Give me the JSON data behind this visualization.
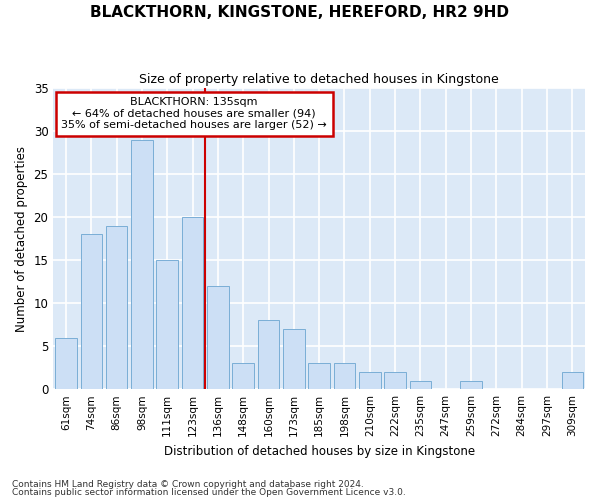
{
  "title": "BLACKTHORN, KINGSTONE, HEREFORD, HR2 9HD",
  "subtitle": "Size of property relative to detached houses in Kingstone",
  "xlabel": "Distribution of detached houses by size in Kingstone",
  "ylabel": "Number of detached properties",
  "categories": [
    "61sqm",
    "74sqm",
    "86sqm",
    "98sqm",
    "111sqm",
    "123sqm",
    "136sqm",
    "148sqm",
    "160sqm",
    "173sqm",
    "185sqm",
    "198sqm",
    "210sqm",
    "222sqm",
    "235sqm",
    "247sqm",
    "259sqm",
    "272sqm",
    "284sqm",
    "297sqm",
    "309sqm"
  ],
  "values": [
    6,
    18,
    19,
    29,
    15,
    20,
    12,
    3,
    8,
    7,
    3,
    3,
    2,
    2,
    1,
    0,
    1,
    0,
    0,
    0,
    2
  ],
  "bar_color": "#ccdff5",
  "bar_edge_color": "#7aaed6",
  "vline_color": "#cc0000",
  "vline_bin": 6,
  "annotation_text_line1": "BLACKTHORN: 135sqm",
  "annotation_text_line2": "← 64% of detached houses are smaller (94)",
  "annotation_text_line3": "35% of semi-detached houses are larger (52) →",
  "annotation_box_color": "white",
  "annotation_box_edge_color": "#cc0000",
  "ylim": [
    0,
    35
  ],
  "yticks": [
    0,
    5,
    10,
    15,
    20,
    25,
    30,
    35
  ],
  "fig_bg_color": "#ffffff",
  "plot_bg_color": "#dce9f7",
  "grid_color": "#ffffff",
  "footnote1": "Contains HM Land Registry data © Crown copyright and database right 2024.",
  "footnote2": "Contains public sector information licensed under the Open Government Licence v3.0."
}
